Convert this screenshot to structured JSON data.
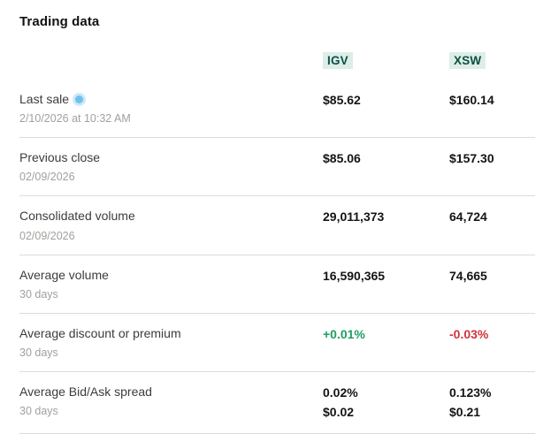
{
  "page": {
    "title": "Trading data"
  },
  "colors": {
    "positive": "#1f9d61",
    "negative": "#d0343a",
    "badge_bg": "#ddeee7",
    "badge_text": "#0b4f44",
    "live_dot": "#6ec1ea"
  },
  "table": {
    "columns": [
      {
        "label": "IGV"
      },
      {
        "label": "XSW"
      }
    ],
    "rows": [
      {
        "label": "Last sale",
        "icon": "live-indicator",
        "sublabel": "2/10/2026 at 10:32 AM",
        "igv": "$85.62",
        "xsw": "$160.14"
      },
      {
        "label": "Previous close",
        "sublabel": "02/09/2026",
        "igv": "$85.06",
        "xsw": "$157.30"
      },
      {
        "label": "Consolidated volume",
        "sublabel": "02/09/2026",
        "igv": "29,011,373",
        "xsw": "64,724"
      },
      {
        "label": "Average volume",
        "sublabel": "30 days",
        "igv": "16,590,365",
        "xsw": "74,665"
      },
      {
        "label": "Average discount or premium",
        "sublabel": "30 days",
        "igv": "+0.01%",
        "xsw": "-0.03%",
        "igv_color": "positive",
        "xsw_color": "negative"
      },
      {
        "label": "Average Bid/Ask spread",
        "sublabel": "30 days",
        "igv": "0.02%",
        "igv_line2": "$0.02",
        "xsw": "0.123%",
        "xsw_line2": "$0.21"
      }
    ]
  }
}
